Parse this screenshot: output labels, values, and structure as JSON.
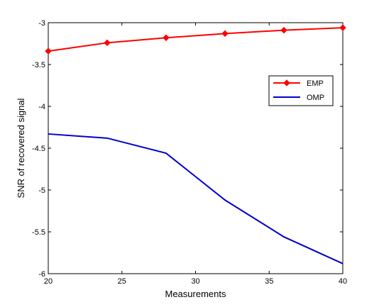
{
  "chart_data": {
    "type": "line",
    "title": "",
    "xlabel": "Measurements",
    "ylabel": "SNR of recovered signal",
    "xlim": [
      20,
      40
    ],
    "ylim": [
      -6,
      -3
    ],
    "xticks": [
      20,
      25,
      30,
      35,
      40
    ],
    "yticks": [
      -3,
      -3.5,
      -4,
      -4.5,
      -5,
      -5.5,
      -6
    ],
    "xtick_labels": [
      "20",
      "25",
      "30",
      "35",
      "40"
    ],
    "ytick_labels": [
      "-3",
      "-3.5",
      "-4",
      "-4.5",
      "-5",
      "-5.5",
      "-6"
    ],
    "grid": false,
    "legend_position": "upper-right",
    "x": [
      20,
      24,
      28,
      32,
      36,
      40
    ],
    "series": [
      {
        "name": "EMP",
        "color": "#ff0000",
        "marker": "diamond",
        "values": [
          -3.34,
          -3.24,
          -3.18,
          -3.13,
          -3.09,
          -3.06
        ]
      },
      {
        "name": "OMP",
        "color": "#0000cc",
        "marker": "none",
        "values": [
          -4.33,
          -4.38,
          -4.56,
          -5.12,
          -5.56,
          -5.88
        ]
      }
    ]
  }
}
